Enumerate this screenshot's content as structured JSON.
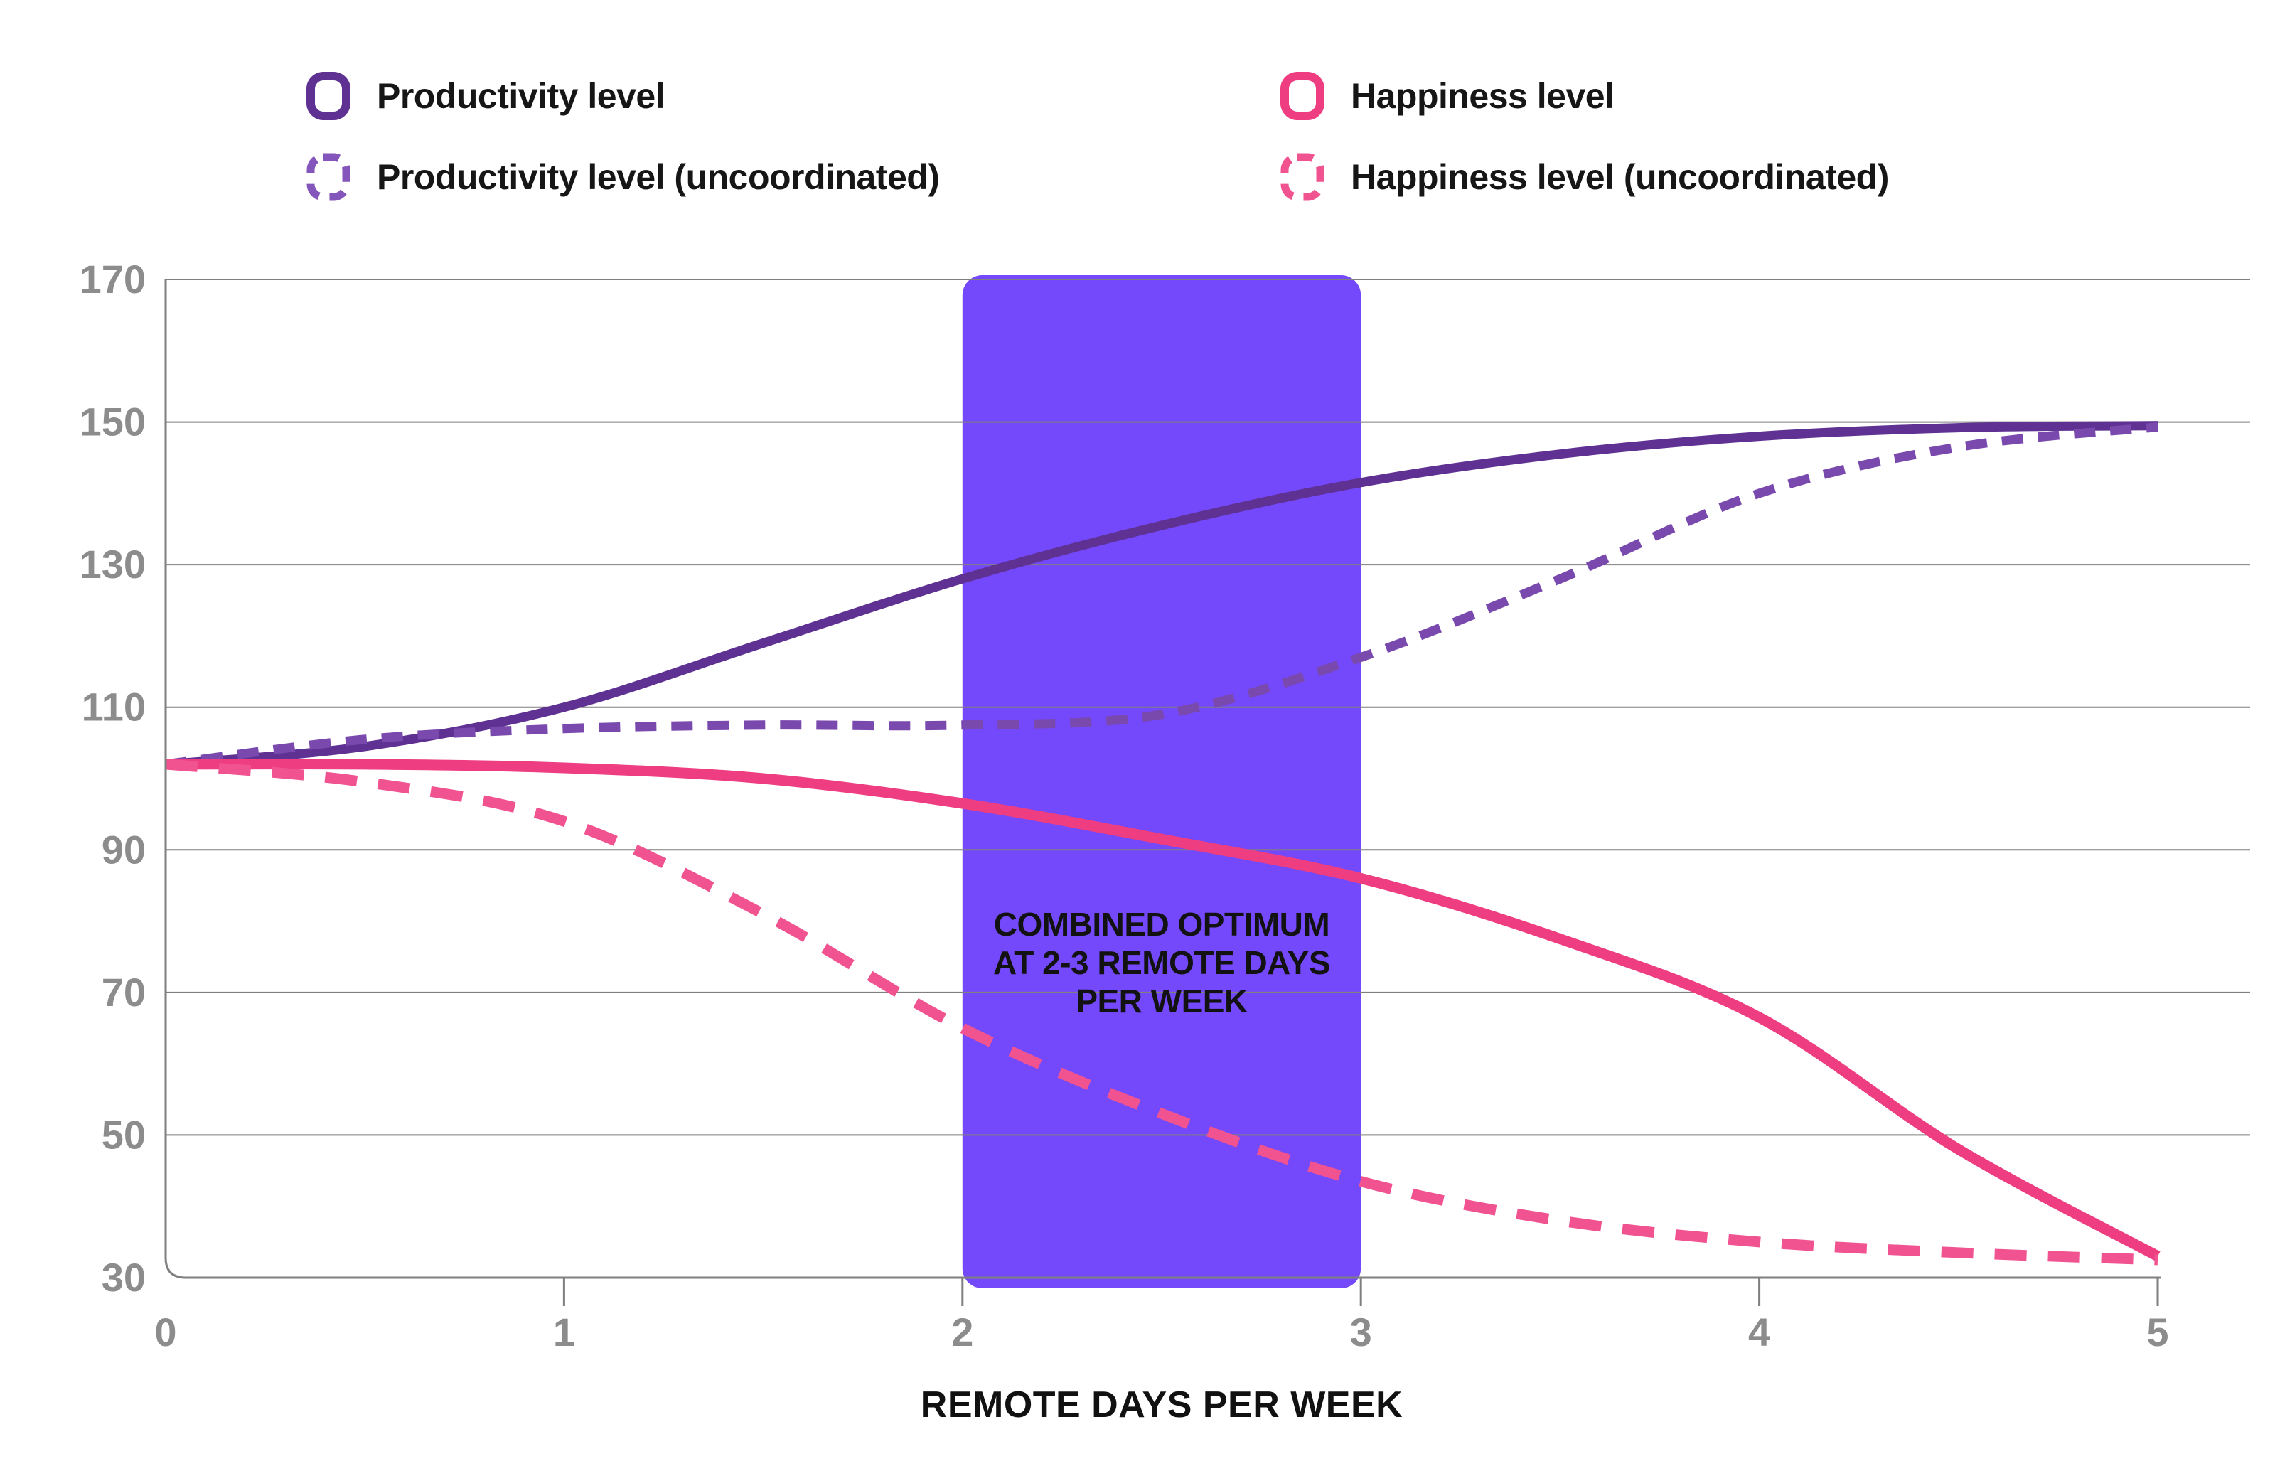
{
  "legend": {
    "items": [
      {
        "label": "Productivity level",
        "color": "#5e3192",
        "dashed": false
      },
      {
        "label": "Productivity level (uncoordinated)",
        "color": "#8455ba",
        "dashed": true
      },
      {
        "label": "Happiness level",
        "color": "#ee3d80",
        "dashed": false
      },
      {
        "label": "Happiness level (uncoordinated)",
        "color": "#f05390",
        "dashed": true
      }
    ]
  },
  "annotation": {
    "lines": [
      "COMBINED OPTIMUM",
      "AT 2-3 REMOTE DAYS",
      "PER WEEK"
    ],
    "band_color": "#7448fb",
    "text_color": "#121212"
  },
  "axes": {
    "x": {
      "title": "REMOTE DAYS PER WEEK",
      "ticks": [
        "0",
        "1",
        "2",
        "3",
        "4",
        "5"
      ]
    },
    "y": {
      "ticks": [
        30,
        50,
        70,
        90,
        110,
        130,
        150,
        170
      ]
    },
    "grid_color": "#7f7f7f",
    "tick_label_color": "#8c8c8c"
  },
  "chart_data": {
    "type": "line",
    "x": [
      0,
      0.5,
      1,
      1.5,
      2,
      2.5,
      3,
      3.5,
      4,
      4.5,
      5
    ],
    "series": [
      {
        "name": "Productivity level",
        "style": "solid",
        "color": "#5e3192",
        "values": [
          102,
          104.5,
          110,
          119,
          128,
          135.5,
          141.5,
          145.5,
          148,
          149.2,
          149.5
        ]
      },
      {
        "name": "Productivity level (uncoordinated)",
        "style": "dashed",
        "color": "#7a49ae",
        "values": [
          102,
          105.5,
          107,
          107.5,
          107.5,
          109,
          117,
          128,
          140,
          146.5,
          149.3
        ]
      },
      {
        "name": "Happiness level",
        "style": "solid",
        "color": "#ee3d80",
        "values": [
          102,
          102,
          101.5,
          100,
          96.5,
          91.5,
          86,
          77.5,
          66.5,
          48,
          33
        ]
      },
      {
        "name": "Happiness level (uncoordinated)",
        "style": "dashed",
        "color": "#f05390",
        "values": [
          102,
          99.5,
          94,
          81,
          65,
          53,
          43.5,
          38,
          35,
          33.5,
          32.5
        ]
      }
    ],
    "xlabel": "REMOTE DAYS PER WEEK",
    "ylabel": "",
    "xlim": [
      0,
      5
    ],
    "ylim": [
      30,
      170
    ],
    "grid": true,
    "legend_position": "top",
    "highlight_band": {
      "x0": 2,
      "x1": 3,
      "label": "COMBINED OPTIMUM AT 2-3 REMOTE DAYS PER WEEK"
    }
  }
}
